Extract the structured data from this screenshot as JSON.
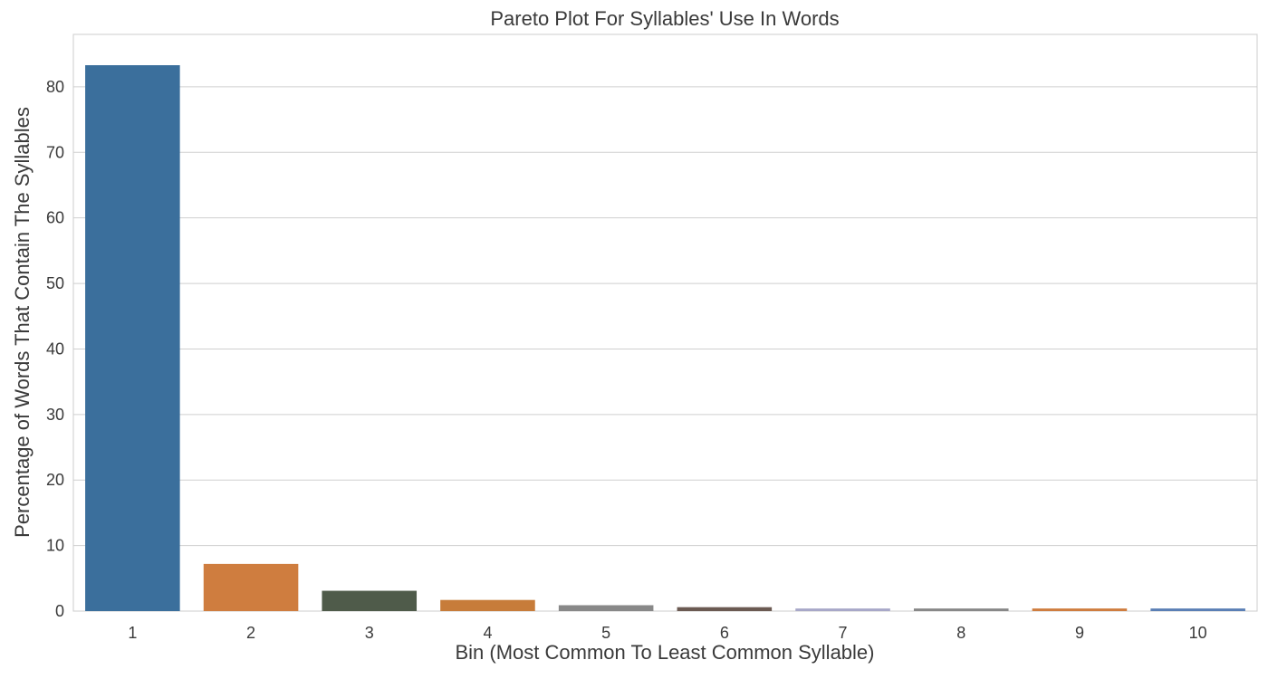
{
  "chart_data": {
    "type": "bar",
    "title": "Pareto Plot For Syllables' Use In Words",
    "xlabel": "Bin (Most Common To Least Common Syllable)",
    "ylabel": "Percentage of Words That Contain The Syllables",
    "categories": [
      "1",
      "2",
      "3",
      "4",
      "5",
      "6",
      "7",
      "8",
      "9",
      "10"
    ],
    "values": [
      83.3,
      7.2,
      3.1,
      1.7,
      0.9,
      0.6,
      0.4,
      0.4,
      0.4,
      0.4
    ],
    "colors": [
      "#3b6f9c",
      "#cf7d3f",
      "#4f5b4a",
      "#c77c3a",
      "#888888",
      "#6b5a52",
      "#a8a8c8",
      "#888888",
      "#cf7d3f",
      "#5a7fb5"
    ],
    "ylim": [
      0,
      88
    ],
    "yticks": [
      0,
      10,
      20,
      30,
      40,
      50,
      60,
      70,
      80
    ],
    "grid": true,
    "legend": "none"
  },
  "style": {
    "grid_color": "#cfcfcf",
    "axis_color": "#cccccc",
    "text_color": "#3a3a3a"
  }
}
